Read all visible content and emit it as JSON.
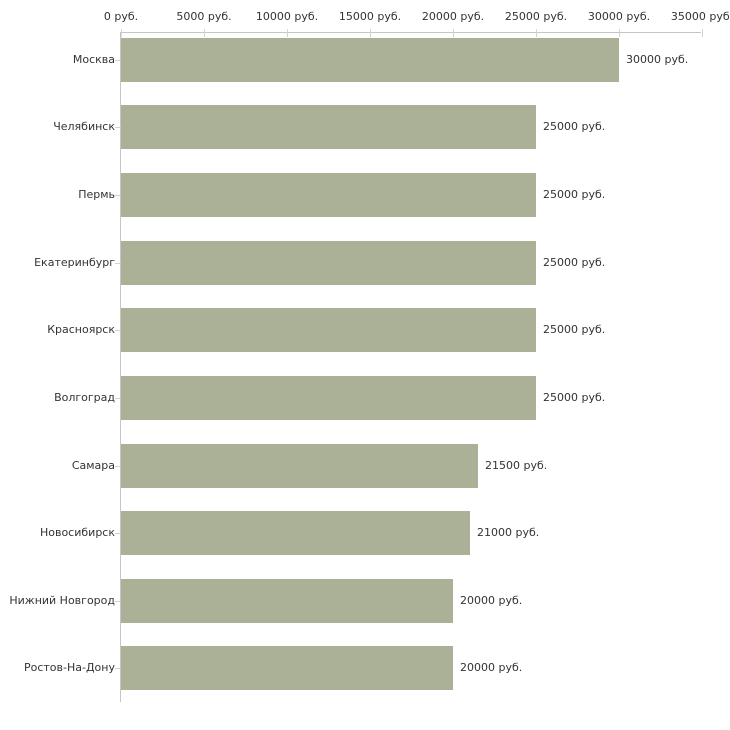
{
  "chart_data": {
    "type": "bar",
    "orientation": "horizontal",
    "title": "",
    "xlabel": "",
    "ylabel": "",
    "grid": false,
    "legend": false,
    "xlim": [
      0,
      35000
    ],
    "x_tick_step": 5000,
    "x_tick_labels": [
      "0 руб.",
      "5000 руб.",
      "10000 руб.",
      "15000 руб.",
      "20000 руб.",
      "25000 руб.",
      "30000 руб.",
      "35000 руб."
    ],
    "categories": [
      "Москва",
      "Челябинск",
      "Пермь",
      "Екатеринбург",
      "Красноярск",
      "Волгоград",
      "Самара",
      "Новосибирск",
      "Нижний Новгород",
      "Ростов-На-Дону"
    ],
    "values": [
      30000,
      25000,
      25000,
      25000,
      25000,
      25000,
      21500,
      21000,
      20000,
      20000
    ],
    "value_labels": [
      "30000 руб.",
      "25000 руб.",
      "25000 руб.",
      "25000 руб.",
      "25000 руб.",
      "25000 руб.",
      "21500 руб.",
      "21000 руб.",
      "20000 руб.",
      "20000 руб."
    ],
    "colors": {
      "bar": "#aab197",
      "axis_line": "#c5c5c5",
      "tick_mark": "#d4d7c0",
      "text": "#333333",
      "background": "#ffffff"
    }
  }
}
